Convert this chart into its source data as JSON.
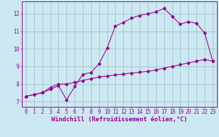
{
  "xlabel": "Windchill (Refroidissement éolien,°C)",
  "background_color": "#cce8f0",
  "line_color": "#990099",
  "grid_color": "#99bbcc",
  "xlim": [
    -0.5,
    23.5
  ],
  "ylim": [
    6.7,
    12.7
  ],
  "xticks": [
    0,
    1,
    2,
    3,
    4,
    5,
    6,
    7,
    8,
    9,
    10,
    11,
    12,
    13,
    14,
    15,
    16,
    17,
    18,
    19,
    20,
    21,
    22,
    23
  ],
  "yticks": [
    7,
    8,
    9,
    10,
    11,
    12
  ],
  "curve1_x": [
    0,
    1,
    2,
    3,
    4,
    5,
    6,
    7,
    8,
    9,
    10,
    11,
    12,
    13,
    14,
    15,
    16,
    17,
    18,
    19,
    20,
    21,
    22,
    23
  ],
  "curve1_y": [
    7.3,
    7.4,
    7.5,
    7.7,
    7.9,
    7.1,
    7.85,
    8.55,
    8.65,
    9.15,
    10.05,
    11.3,
    11.5,
    11.75,
    11.9,
    12.0,
    12.1,
    12.3,
    11.85,
    11.4,
    11.55,
    11.45,
    10.9,
    9.3
  ],
  "curve2_x": [
    0,
    1,
    2,
    3,
    4,
    5,
    6,
    7,
    8,
    9,
    10,
    11,
    12,
    13,
    14,
    15,
    16,
    17,
    18,
    19,
    20,
    21,
    22,
    23
  ],
  "curve2_y": [
    7.3,
    7.4,
    7.5,
    7.8,
    8.0,
    8.0,
    8.1,
    8.2,
    8.3,
    8.4,
    8.45,
    8.52,
    8.57,
    8.62,
    8.67,
    8.72,
    8.8,
    8.9,
    9.0,
    9.1,
    9.2,
    9.3,
    9.4,
    9.3
  ],
  "tick_fontsize": 5.5,
  "label_fontsize": 6.5
}
